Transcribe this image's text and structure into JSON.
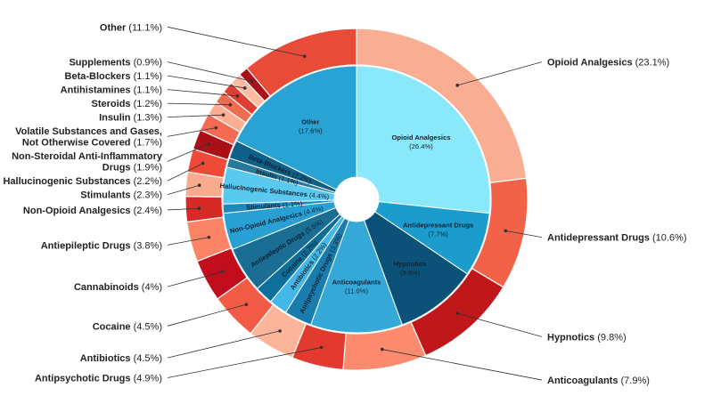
{
  "chart_data": {
    "type": "pie",
    "variant": "nested-donut",
    "outer_ring": {
      "colors": [
        "#f9ad92",
        "#f26248",
        "#c0171b",
        "#fc8a6e",
        "#e23a2e",
        "#fcb49a",
        "#f25c47",
        "#c20d1c",
        "#fc8466",
        "#d52a26",
        "#fbaa8e",
        "#ef4a37",
        "#ab0f18",
        "#f46a53",
        "#fcae93",
        "#f06b54",
        "#df3f31",
        "#fdbba2",
        "#a8101a",
        "#e94b39",
        "#ba141b"
      ],
      "slices": [
        {
          "name": "Opioid Analgesics",
          "pct": "(23.1%)",
          "value": 23.1
        },
        {
          "name": "Antidepressant Drugs",
          "pct": "(10.6%)",
          "value": 10.6
        },
        {
          "name": "Hypnotics",
          "pct": "(9.8%)",
          "value": 9.8
        },
        {
          "name": "Anticoagulants",
          "pct": "(7.9%)",
          "value": 7.9
        },
        {
          "name": "Antipsychotic Drugs",
          "pct": "(4.9%)",
          "value": 4.9
        },
        {
          "name": "Antibiotics",
          "pct": "(4.5%)",
          "value": 4.5
        },
        {
          "name": "Cocaine",
          "pct": "(4.5%)",
          "value": 4.5
        },
        {
          "name": "Cannabinoids",
          "pct": "(4%)",
          "value": 4.0
        },
        {
          "name": "Antiepileptic Drugs",
          "pct": "(3.8%)",
          "value": 3.8
        },
        {
          "name": "Non-Opioid Analgesics",
          "pct": "(2.4%)",
          "value": 2.4
        },
        {
          "name": "Stimulants",
          "pct": "(2.3%)",
          "value": 2.3
        },
        {
          "name": "Hallucinogenic Substances",
          "pct": "(2.2%)",
          "value": 2.2
        },
        {
          "name": "Non-Steroidal Anti-Inflammatory Drugs",
          "pct": "(1.9%)",
          "value": 1.9
        },
        {
          "name": "Volatile Substances and Gases, Not Otherwise Covered",
          "pct": "(1.7%)",
          "value": 1.7
        },
        {
          "name": "Insulin",
          "pct": "(1.3%)",
          "value": 1.3
        },
        {
          "name": "Steroids",
          "pct": "(1.2%)",
          "value": 1.2
        },
        {
          "name": "Antihistamines",
          "pct": "(1.1%)",
          "value": 1.1
        },
        {
          "name": "Beta-Blockers",
          "pct": "(1.1%)",
          "value": 1.1
        },
        {
          "name": "Supplements",
          "pct": "(0.9%)",
          "value": 0.9
        },
        {
          "name": "Other",
          "pct": "(11.1%)",
          "value": 11.1
        }
      ]
    },
    "inner_ring": {
      "colors": [
        "#8ae8fb",
        "#1b9ccc",
        "#0c5178",
        "#35a8d8",
        "#1a7cad",
        "#43b8e8",
        "#0d6e99",
        "#1a6d93",
        "#28a0d3",
        "#1b89ba",
        "#5ac9f0",
        "#28789d",
        "#0f6088",
        "#28a3d3",
        "#4fc1ec",
        "#0f6088",
        "#1892c5"
      ],
      "slices": [
        {
          "name": "Opioid Analgesics",
          "pct": "(26.4%)",
          "value": 26.4
        },
        {
          "name": "Antidepressant Drugs",
          "pct": "(7.7%)",
          "value": 7.7
        },
        {
          "name": "Hypnotics",
          "pct": "(9.9%)",
          "value": 9.9
        },
        {
          "name": "Anticoagulants",
          "pct": "(11.0%)",
          "value": 11.0
        },
        {
          "name": "Antipsychotic Drugs",
          "pct": "(3.3%)",
          "value": 3.3
        },
        {
          "name": "Antibiotics",
          "pct": "(2.2%)",
          "value": 2.2
        },
        {
          "name": "Cocaine",
          "pct": "(2.2%)",
          "value": 2.2
        },
        {
          "name": "Antiepileptic Drugs",
          "pct": "(5.5%)",
          "value": 5.5
        },
        {
          "name": "Non-Opioid Analgesics",
          "pct": "(4.4%)",
          "value": 4.4
        },
        {
          "name": "Stimulants",
          "pct": "(1.1%)",
          "value": 1.1
        },
        {
          "name": "Hallucinogenic Substances",
          "pct": "(4.4%)",
          "value": 4.4
        },
        {
          "name": "Insulin",
          "pct": "(1.1%)",
          "value": 1.1
        },
        {
          "name": "Beta-Blockers",
          "pct": "(2.2%)",
          "value": 2.2
        },
        {
          "name": "Other",
          "pct": "(17.6%)",
          "value": 17.6
        }
      ]
    }
  }
}
